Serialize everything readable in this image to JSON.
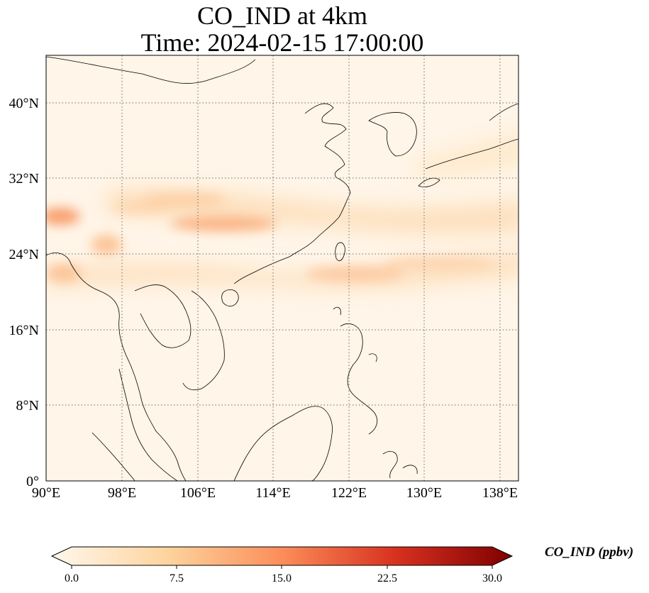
{
  "title": {
    "line1": "CO_IND at 4km",
    "line2": "Time: 2024-02-15 17:00:00"
  },
  "map": {
    "lon_range": [
      90,
      139
    ],
    "lat_range": [
      0,
      45
    ],
    "lon_ticks": [
      {
        "value": 90,
        "label": "90°E"
      },
      {
        "value": 98,
        "label": "98°E"
      },
      {
        "value": 106,
        "label": "106°E"
      },
      {
        "value": 114,
        "label": "114°E"
      },
      {
        "value": 122,
        "label": "122°E"
      },
      {
        "value": 130,
        "label": "130°E"
      },
      {
        "value": 138,
        "label": "138°E"
      }
    ],
    "lat_ticks": [
      {
        "value": 0,
        "label": "0°"
      },
      {
        "value": 8,
        "label": "8°N"
      },
      {
        "value": 16,
        "label": "16°N"
      },
      {
        "value": 24,
        "label": "24°N"
      },
      {
        "value": 32,
        "label": "32°N"
      },
      {
        "value": 40,
        "label": "40°N"
      }
    ],
    "gridlines": true,
    "colormap": "OrRd",
    "coastline_color": "#000000"
  },
  "colorbar": {
    "label": "CO_IND (ppbv)",
    "range": [
      0,
      30
    ],
    "extend": "both",
    "ticks": [
      {
        "value": 0,
        "label": "0.0"
      },
      {
        "value": 7.5,
        "label": "7.5"
      },
      {
        "value": 15,
        "label": "15.0"
      },
      {
        "value": 22.5,
        "label": "22.5"
      },
      {
        "value": 30,
        "label": "30.0"
      }
    ],
    "stops": [
      "#fff7ec",
      "#fdd49e",
      "#fc8d59",
      "#d7301f",
      "#7f0000"
    ]
  }
}
